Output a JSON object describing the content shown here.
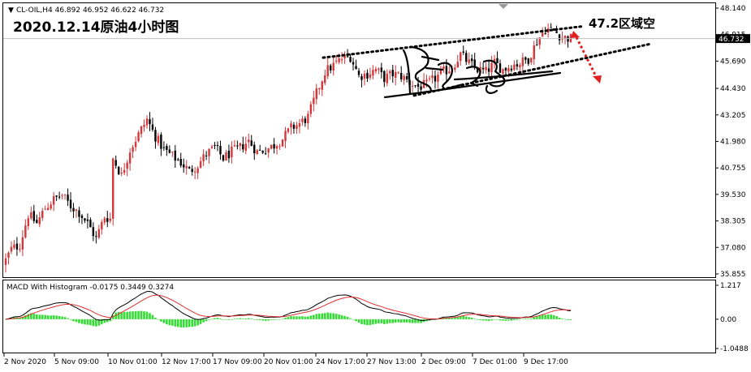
{
  "header": {
    "symbol_line": "CL-OIL,H4  46.892 46.952 46.622 46.732",
    "title": "2020.12.14原油4小时图",
    "annotation": "47.2区域空",
    "current_price_tag": "46.732"
  },
  "indicator": {
    "label": "MACD With Histogram -0.0175 0.3449 0.3274",
    "axis_labels": [
      "1.217",
      "0.00",
      "-1.0488"
    ]
  },
  "colors": {
    "bull_candle": "#d4363a",
    "bear_candle": "#000000",
    "macd_line": "#000000",
    "signal_line": "#e03030",
    "histogram": "#33dd33",
    "channel": "#000000",
    "arrow": "#e02020",
    "price_tag_bg": "#000000"
  },
  "chart_data": [
    {
      "type": "candlestick",
      "title": "2020.12.14原油4小时图",
      "symbol": "CL-OIL",
      "timeframe": "H4",
      "ylim": [
        35.855,
        48.14
      ],
      "y_ticks": [
        "48.140",
        "46.915",
        "45.690",
        "44.430",
        "43.205",
        "41.980",
        "40.755",
        "39.530",
        "38.305",
        "37.080",
        "35.855"
      ],
      "x_ticks": [
        "2 Nov 2020",
        "5 Nov 09:00",
        "10 Nov 01:00",
        "12 Nov 17:00",
        "17 Nov 09:00",
        "20 Nov 01:00",
        "24 Nov 17:00",
        "27 Nov 13:00",
        "2 Dec 09:00",
        "7 Dec 01:00",
        "9 Dec 17:00"
      ],
      "close_path": [
        [
          0,
          36.5
        ],
        [
          2,
          37.0
        ],
        [
          5,
          37.2
        ],
        [
          8,
          38.6
        ],
        [
          11,
          38.2
        ],
        [
          14,
          38.9
        ],
        [
          17,
          39.3
        ],
        [
          20,
          39.5
        ],
        [
          23,
          39.0
        ],
        [
          26,
          38.7
        ],
        [
          29,
          38.2
        ],
        [
          32,
          37.5
        ],
        [
          35,
          38.5
        ],
        [
          37,
          38.4
        ],
        [
          38,
          41.2
        ],
        [
          41,
          40.4
        ],
        [
          44,
          41.6
        ],
        [
          47,
          42.3
        ],
        [
          50,
          43.0
        ],
        [
          53,
          42.2
        ],
        [
          56,
          41.6
        ],
        [
          59,
          41.3
        ],
        [
          62,
          41.0
        ],
        [
          65,
          40.6
        ],
        [
          68,
          40.9
        ],
        [
          71,
          41.4
        ],
        [
          74,
          41.7
        ],
        [
          77,
          41.2
        ],
        [
          80,
          41.5
        ],
        [
          83,
          41.7
        ],
        [
          86,
          42.0
        ],
        [
          89,
          41.5
        ],
        [
          92,
          41.6
        ],
        [
          95,
          41.8
        ],
        [
          98,
          42.1
        ],
        [
          101,
          42.6
        ],
        [
          104,
          42.8
        ],
        [
          107,
          43.1
        ],
        [
          110,
          44.2
        ],
        [
          113,
          45.2
        ],
        [
          116,
          45.5
        ],
        [
          119,
          45.8
        ],
        [
          122,
          45.9
        ],
        [
          125,
          45.0
        ],
        [
          128,
          45.1
        ],
        [
          131,
          45.3
        ],
        [
          134,
          44.9
        ],
        [
          137,
          45.1
        ],
        [
          140,
          45.0
        ],
        [
          143,
          44.7
        ],
        [
          146,
          44.5
        ],
        [
          149,
          44.6
        ],
        [
          152,
          44.9
        ],
        [
          155,
          45.2
        ],
        [
          158,
          45.4
        ],
        [
          161,
          46.0
        ],
        [
          164,
          45.6
        ],
        [
          167,
          45.3
        ],
        [
          170,
          45.2
        ],
        [
          173,
          45.6
        ],
        [
          176,
          45.3
        ],
        [
          179,
          45.5
        ],
        [
          182,
          45.6
        ],
        [
          185,
          45.8
        ],
        [
          188,
          46.6
        ],
        [
          191,
          47.2
        ],
        [
          194,
          47.1
        ],
        [
          197,
          46.8
        ],
        [
          200,
          46.732
        ]
      ],
      "channel": {
        "upper": [
          {
            "x": "24 Nov",
            "y": 45.85
          },
          {
            "x": "10 Dec",
            "y": 47.3
          }
        ],
        "lower": [
          {
            "x": "30 Nov",
            "y": 44.1
          },
          {
            "x": "11 Dec",
            "y": 46.5
          }
        ]
      },
      "annotations": [
        {
          "text": "47.2区域空",
          "price": 47.2
        }
      ],
      "current_price": 46.732
    },
    {
      "type": "macd",
      "title": "MACD With Histogram",
      "values": {
        "macd": -0.0175,
        "signal": 0.3449,
        "histogram": 0.3274
      },
      "ylim": [
        -1.0488,
        1.217
      ],
      "y_ticks": [
        "1.217",
        "0.00",
        "-1.0488"
      ]
    }
  ]
}
